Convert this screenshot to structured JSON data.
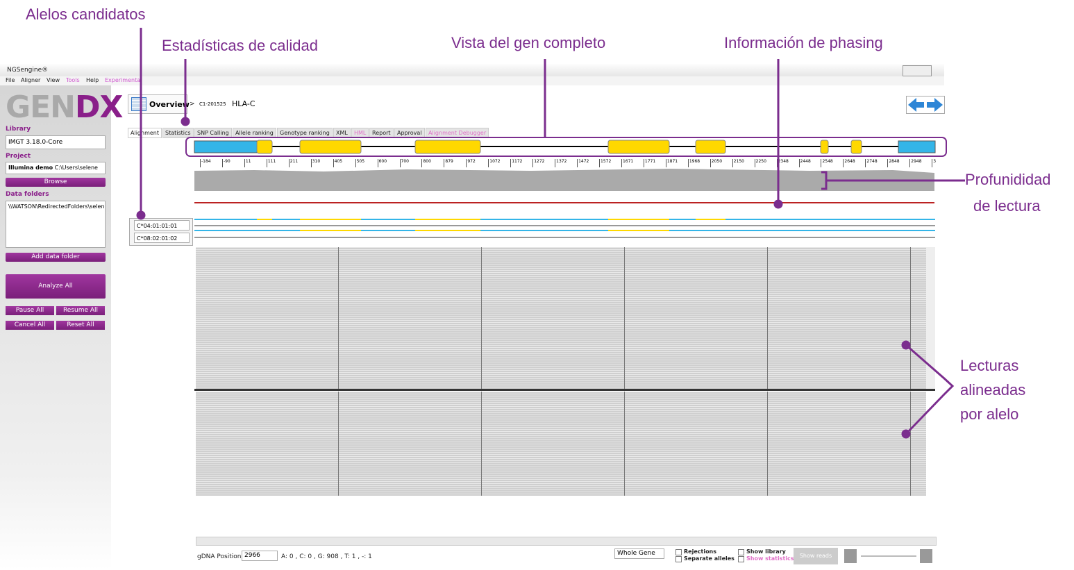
{
  "annotations": {
    "candidate_alleles": "Alelos candidatos",
    "quality_stats": "Estadísticas de calidad",
    "gene_view": "Vista del  gen completo",
    "phasing": "Información de phasing",
    "depth": [
      "Profunididad",
      "de lectura"
    ],
    "reads": [
      "Lecturas",
      "alineadas",
      "por alelo"
    ]
  },
  "window": {
    "title": "NGSengine®",
    "menu": [
      "File",
      "Aligner",
      "View",
      "Tools",
      "Help",
      "Experimental"
    ]
  },
  "sidebar": {
    "logo": [
      "GEN",
      "DX"
    ],
    "library_label": "Library",
    "library": "IMGT 3.18.0-Core",
    "project_label": "Project",
    "project_name": "Illumina demo",
    "project_path": "C:\\Users\\selene",
    "browse": "Browse",
    "data_folders_label": "Data folders",
    "data_folder": "\\\\WATSON\\RedirectedFolders\\selene",
    "add_folder": "Add data folder",
    "analyze_all": "Analyze All",
    "buttons": [
      "Pause All",
      "Resume All",
      "Cancel All",
      "Reset All"
    ]
  },
  "toolbar": {
    "overview": "Overview",
    "separator": ">",
    "sample": "C1-201525",
    "locus": "HLA-C"
  },
  "tabs": [
    "Alignment",
    "Statistics",
    "SNP Calling",
    "Allele ranking",
    "Genotype ranking",
    "XML",
    "HML",
    "Report",
    "Approval",
    "Alignment Debugger"
  ],
  "ruler": [
    "-184",
    "-90",
    "11",
    "111",
    "211",
    "310",
    "405",
    "505",
    "600",
    "700",
    "800",
    "879",
    "972",
    "1072",
    "1172",
    "1272",
    "1372",
    "1472",
    "1572",
    "1671",
    "1771",
    "1871",
    "1968",
    "2050",
    "2150",
    "2250",
    "2348",
    "2448",
    "2548",
    "2648",
    "2748",
    "2848",
    "2948",
    "3"
  ],
  "alleles": [
    "C*04:01:01:01",
    "C*08:02:01:02"
  ],
  "status": {
    "position_label": "gDNA Position:",
    "position": "2966",
    "counts": "A: 0 , C: 0 , G: 908 , T: 1 , -: 1",
    "region": "Whole Gene",
    "checkboxes": [
      "Rejections",
      "Separate alleles",
      "Show library",
      "Show statistics"
    ],
    "show_reads": "Show reads"
  }
}
